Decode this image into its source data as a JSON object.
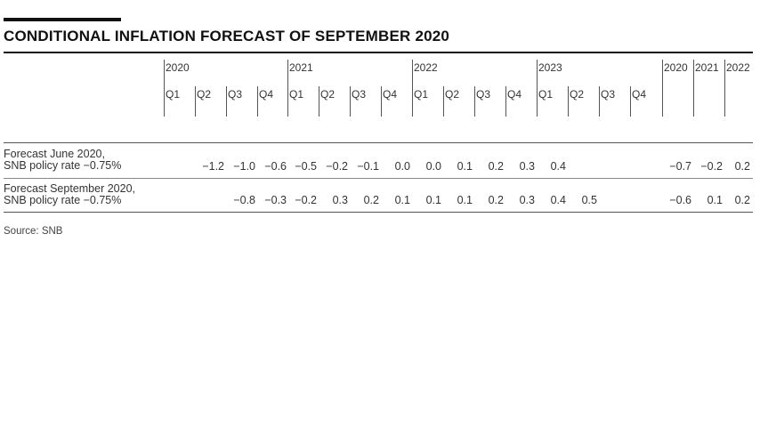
{
  "title": "CONDITIONAL INFLATION FORECAST OF SEPTEMBER 2020",
  "columns": {
    "years": [
      "2020",
      "2021",
      "2022",
      "2023"
    ],
    "quarters": [
      "Q1",
      "Q2",
      "Q3",
      "Q4"
    ],
    "annual": [
      "2020",
      "2021",
      "2022"
    ]
  },
  "rows": [
    {
      "label_line1": "Forecast June 2020,",
      "label_line2": "SNB policy rate −0.75%",
      "quarterly": [
        "",
        "−1.2",
        "−1.0",
        "−0.6",
        "−0.5",
        "−0.2",
        "−0.1",
        "0.0",
        "0.0",
        "0.1",
        "0.2",
        "0.3",
        "0.4",
        "",
        "",
        ""
      ],
      "annual": [
        "−0.7",
        "−0.2",
        "0.2"
      ]
    },
    {
      "label_line1": "Forecast September 2020,",
      "label_line2": "SNB policy rate −0.75%",
      "quarterly": [
        "",
        "",
        "−0.8",
        "−0.3",
        "−0.2",
        "0.3",
        "0.2",
        "0.1",
        "0.1",
        "0.1",
        "0.2",
        "0.3",
        "0.4",
        "0.5",
        "",
        ""
      ],
      "annual": [
        "−0.6",
        "0.1",
        "0.2"
      ]
    }
  ],
  "source": "Source: SNB"
}
